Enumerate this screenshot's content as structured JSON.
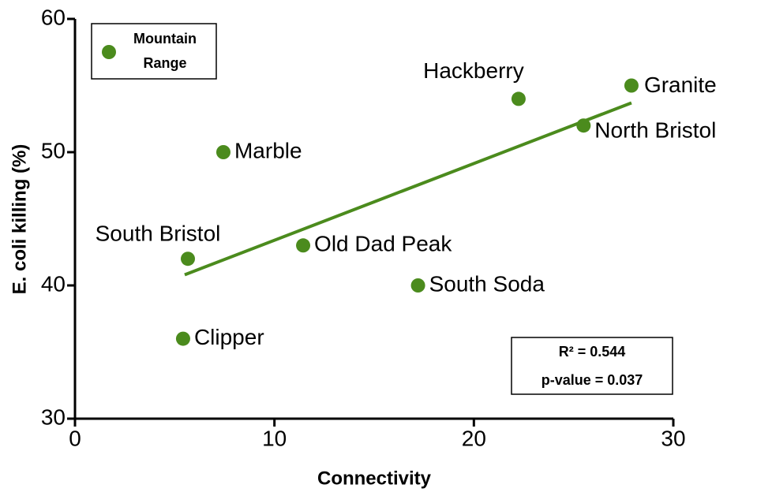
{
  "chart_data": {
    "type": "scatter",
    "xlabel": "Connectivity",
    "ylabel": "E. coli killing (%)",
    "series": [
      {
        "name": "Mountain Range",
        "color": "#4b8b1d",
        "x": [
          5.42,
          5.66,
          7.44,
          11.44,
          17.2,
          22.24,
          25.5,
          27.9
        ],
        "values": [
          36,
          42,
          50,
          43,
          40,
          54,
          52,
          55
        ],
        "labels": [
          "Clipper",
          "South Bristol",
          "Marble",
          "Old Dad Peak",
          "South Soda",
          "Hackberry",
          "North Bristol",
          "Granite"
        ]
      }
    ],
    "trend_line": {
      "color": "#4b8b1d",
      "x": [
        5.5,
        27.9
      ],
      "values": [
        40.8,
        53.7
      ]
    },
    "annotations": [
      "R² = 0.544",
      "p-value = 0.037"
    ],
    "xlim": [
      0,
      30
    ],
    "xticks": [
      0,
      10,
      20,
      30
    ],
    "ylim": [
      30,
      60
    ],
    "yticks": [
      30,
      40,
      50,
      60
    ],
    "legend": "top-left"
  }
}
